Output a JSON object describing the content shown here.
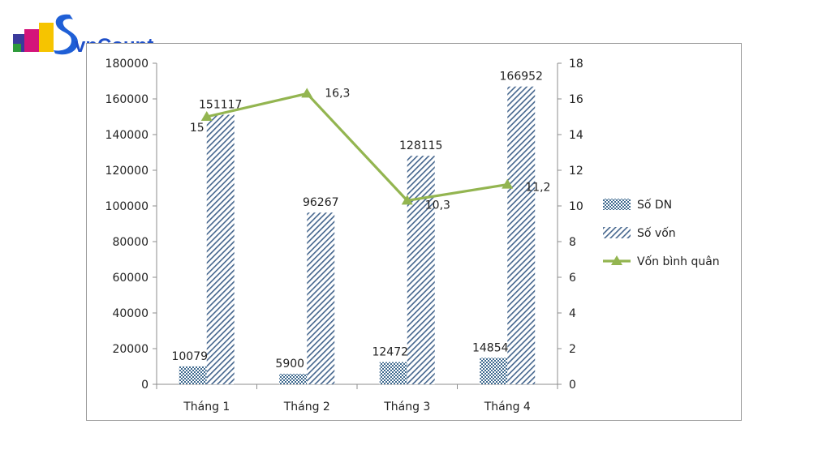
{
  "brand": {
    "logo_text": "vnCount",
    "colors": [
      "#3b3b9c",
      "#d4147a",
      "#f6c400",
      "#2e9a3a",
      "#1f5fd6"
    ]
  },
  "chart_data": {
    "type": "bar",
    "categories": [
      "Tháng 1",
      "Tháng 2",
      "Tháng 3",
      "Tháng 4"
    ],
    "series": [
      {
        "name": "Số DN",
        "kind": "bar",
        "axis": "left",
        "values": [
          10079,
          5900,
          12472,
          14854
        ],
        "labels": [
          "10079",
          "5900",
          "12472",
          "14854"
        ],
        "pattern": "crosshatch",
        "color": "#3f6a8f"
      },
      {
        "name": "Số vốn",
        "kind": "bar",
        "axis": "left",
        "values": [
          151117,
          96267,
          128115,
          166952
        ],
        "labels": [
          "151117",
          "96267",
          "128115",
          "166952"
        ],
        "pattern": "diagonal",
        "color": "#44658d"
      },
      {
        "name": "Vốn bình quân",
        "kind": "line",
        "axis": "right",
        "values": [
          15,
          16.3,
          10.3,
          11.2
        ],
        "labels": [
          "15",
          "16,3",
          "10,3",
          "11,2"
        ],
        "color": "#93b550",
        "marker": "triangle"
      }
    ],
    "y_left": {
      "min": 0,
      "max": 180000,
      "ticks": [
        "0",
        "20000",
        "40000",
        "60000",
        "80000",
        "100000",
        "120000",
        "140000",
        "160000",
        "180000"
      ]
    },
    "y_right": {
      "min": 0,
      "max": 18,
      "ticks": [
        "0",
        "2",
        "4",
        "6",
        "8",
        "10",
        "12",
        "14",
        "16",
        "18"
      ]
    },
    "grid": false,
    "legend_position": "right"
  }
}
